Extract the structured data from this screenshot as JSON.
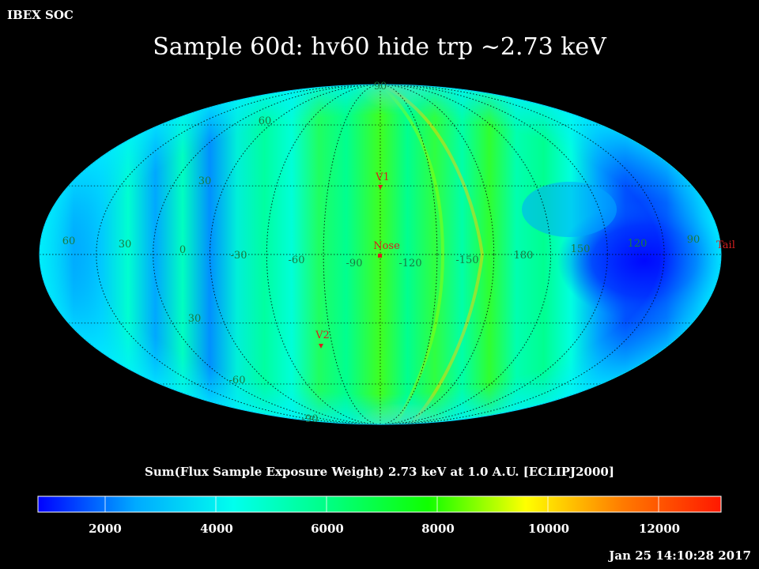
{
  "header": {
    "org": "IBEX SOC",
    "title": "Sample 60d: hv60 hide trp ~2.73 keV"
  },
  "map": {
    "projection": "Mollweide",
    "frame": "ECLIPJ2000",
    "lat_labels_top": [
      "90",
      "60",
      "30"
    ],
    "lat_labels_bottom": [
      "30",
      "-60",
      "-90"
    ],
    "lon_labels": [
      "60",
      "30",
      "0",
      "-30",
      "-60",
      "-90",
      "-120",
      "-150",
      "180",
      "150",
      "120",
      "90"
    ],
    "markers": [
      {
        "id": "v1",
        "label": "V1"
      },
      {
        "id": "nose",
        "label": "Nose"
      },
      {
        "id": "v2",
        "label": "V2"
      },
      {
        "id": "tail",
        "label": "Tail"
      }
    ],
    "marker_color": "#d42020",
    "grid_label_color": "#1a7a40"
  },
  "colorbar": {
    "title": "Sum(Flux Sample Exposure Weight)  2.73 keV at 1.0 A.U. [ECLIPJ2000]",
    "ticks": [
      "2000",
      "4000",
      "6000",
      "8000",
      "10000",
      "12000"
    ],
    "stops": [
      "#0000ff",
      "#00aaff",
      "#00ffee",
      "#00ff80",
      "#10ff00",
      "#ffff00",
      "#ff7a00",
      "#ff1800"
    ]
  },
  "footer": {
    "timestamp": "Jan 25 14:10:28 2017"
  }
}
